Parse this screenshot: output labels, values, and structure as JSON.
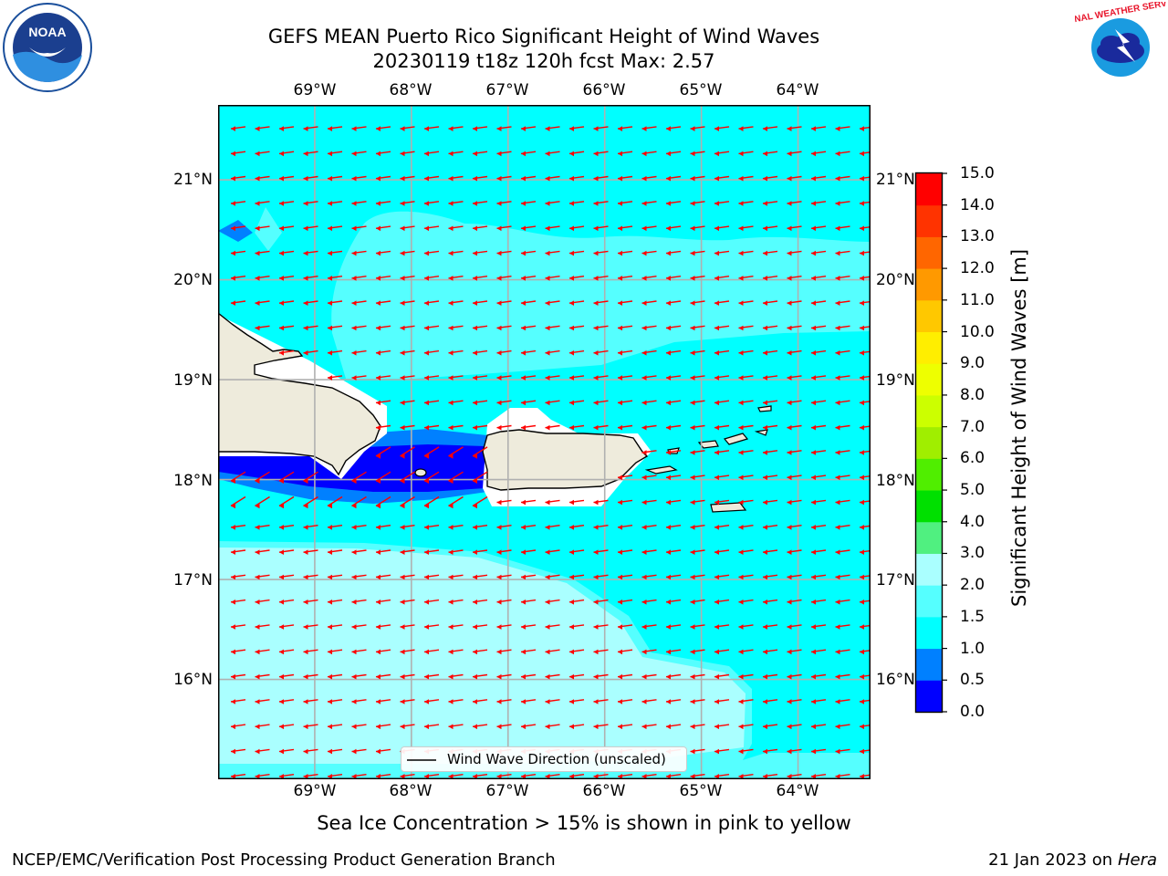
{
  "title": {
    "line1": "GEFS MEAN Puerto Rico Significant Height of Wind Waves",
    "line2": "20230119 t18z 120h fcst   Max: 2.57"
  },
  "map": {
    "lon_labels": [
      "69°W",
      "68°W",
      "67°W",
      "66°W",
      "65°W",
      "64°W"
    ],
    "lat_labels": [
      "21°N",
      "20°N",
      "19°N",
      "18°N",
      "17°N",
      "16°N"
    ],
    "lon_range": [
      -70.0,
      -63.25
    ],
    "lat_range": [
      15.0,
      21.75
    ],
    "grid": true,
    "land_color": "#eeebdc",
    "arrow_color": "#ff0000",
    "wind_wave_direction": "westward",
    "legend_label": "Wind Wave Direction (unscaled)"
  },
  "colorbar": {
    "label": "Significant Height of Wind Waves [m]",
    "ticks": [
      "15.0",
      "14.0",
      "13.0",
      "12.0",
      "11.0",
      "10.0",
      "9.0",
      "8.0",
      "7.0",
      "6.0",
      "5.0",
      "4.0",
      "3.0",
      "2.0",
      "1.5",
      "1.0",
      "0.5",
      "0.0"
    ],
    "colors": [
      "#0000ff",
      "#0080ff",
      "#00ffff",
      "#55ffff",
      "#aaffff",
      "#50f080",
      "#00e000",
      "#50ee00",
      "#a0ee00",
      "#ccff00",
      "#eeff00",
      "#ffee00",
      "#ffc800",
      "#ff9900",
      "#ff6600",
      "#ff3300",
      "#ff0000"
    ]
  },
  "chart_data": {
    "type": "heatmap",
    "title": "GEFS MEAN Puerto Rico Significant Height of Wind Waves",
    "variable": "Significant Height of Wind Waves [m]",
    "max": 2.57,
    "levels": [
      0.0,
      0.5,
      1.0,
      1.5,
      2.0,
      3.0,
      4.0,
      5.0,
      6.0,
      7.0,
      8.0,
      9.0,
      10.0,
      11.0,
      12.0,
      13.0,
      14.0,
      15.0
    ]
  },
  "notes": {
    "sea_ice": "Sea Ice Concentration > 15% is shown in pink to yellow"
  },
  "footer": {
    "left": "NCEP/EMC/Verification Post Processing Product Generation Branch",
    "date": "21 Jan 2023 on ",
    "host": "Hera"
  },
  "logos": {
    "left_name": "NOAA",
    "right_name": "NATIONAL WEATHER SERVICE"
  }
}
